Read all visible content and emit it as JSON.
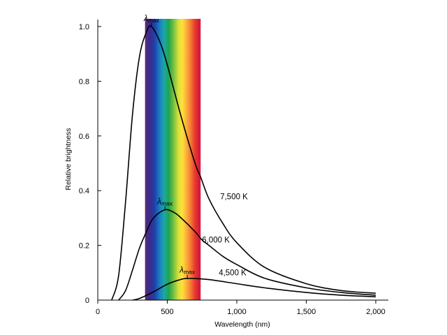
{
  "chart_data": {
    "type": "line",
    "title": "",
    "xlabel": "Wavelength (nm)",
    "ylabel": "Relative brightness",
    "xlim": [
      0,
      2000
    ],
    "ylim": [
      0,
      1.0
    ],
    "x_ticks": [
      0,
      500,
      1000,
      1500,
      2000
    ],
    "x_tick_labels": [
      "0",
      "500",
      "1,000",
      "1,500",
      "2,000"
    ],
    "y_ticks": [
      0,
      0.2,
      0.4,
      0.6,
      0.8,
      1.0
    ],
    "y_tick_labels": [
      "0",
      "0.2",
      "0.4",
      "0.6",
      "0.8",
      "1.0"
    ],
    "visible_spectrum_band_nm": [
      340,
      740
    ],
    "peak_marker_label": "λ",
    "peak_marker_subscript": "max",
    "series": [
      {
        "name": "7,500 K",
        "peak_x": 386,
        "peak_y": 1.0,
        "x": [
          100,
          150,
          200,
          250,
          300,
          350,
          386,
          450,
          500,
          600,
          700,
          740,
          800,
          900,
          1000,
          1200,
          1500,
          1750,
          2000
        ],
        "y": [
          0.0,
          0.09,
          0.36,
          0.68,
          0.89,
          0.98,
          1.0,
          0.94,
          0.86,
          0.67,
          0.5,
          0.45,
          0.37,
          0.28,
          0.21,
          0.12,
          0.06,
          0.035,
          0.025
        ]
      },
      {
        "name": "6,000 K",
        "peak_x": 483,
        "peak_y": 0.33,
        "x": [
          150,
          200,
          250,
          300,
          350,
          400,
          483,
          550,
          600,
          700,
          750,
          800,
          900,
          1000,
          1200,
          1500,
          1750,
          2000
        ],
        "y": [
          0.0,
          0.035,
          0.11,
          0.19,
          0.25,
          0.3,
          0.33,
          0.32,
          0.3,
          0.25,
          0.22,
          0.2,
          0.16,
          0.13,
          0.08,
          0.045,
          0.028,
          0.018
        ]
      },
      {
        "name": "4,500 K",
        "peak_x": 644,
        "peak_y": 0.08,
        "x": [
          250,
          300,
          400,
          500,
          600,
          644,
          700,
          800,
          1000,
          1200,
          1500,
          1750,
          2000
        ],
        "y": [
          0.0,
          0.006,
          0.03,
          0.058,
          0.076,
          0.079,
          0.079,
          0.075,
          0.06,
          0.045,
          0.028,
          0.018,
          0.012
        ]
      }
    ]
  }
}
